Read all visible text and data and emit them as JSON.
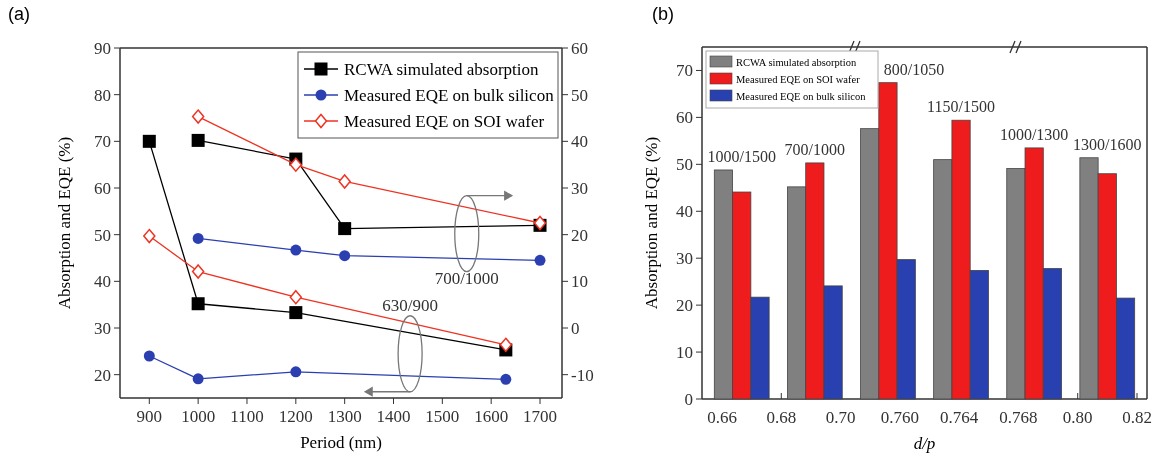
{
  "chart_data": [
    {
      "type": "line",
      "title": "(a)",
      "xlabel": "Period (nm)",
      "ylabel": "Absorption and EQE (%)",
      "xlim": [
        840,
        1745
      ],
      "xticks": [
        900,
        1000,
        1100,
        1200,
        1300,
        1400,
        1500,
        1600,
        1700
      ],
      "ylim": [
        15,
        90
      ],
      "yticks": [
        20,
        30,
        40,
        50,
        60,
        70,
        80,
        90
      ],
      "y2lim": [
        -15,
        60
      ],
      "y2ticks": [
        -10,
        0,
        10,
        20,
        30,
        40,
        50,
        60
      ],
      "legend": "top right",
      "annotations": [
        "630/900",
        "700/1000"
      ],
      "series": [
        {
          "name": "RCWA simulated absorption",
          "color": "#000000",
          "marker": "square",
          "x": [
            900,
            1000,
            1200,
            1630
          ],
          "values": [
            70,
            35.2,
            33.3,
            25.3
          ]
        },
        {
          "name": "Measured EQE on bulk silicon",
          "color": "#2b3fb0",
          "marker": "circle",
          "x": [
            900,
            1000,
            1200,
            1630
          ],
          "values": [
            24,
            19.1,
            20.6,
            19
          ]
        },
        {
          "name": "Measured EQE on SOI wafer",
          "color": "#ee3322",
          "marker": "diamond",
          "x": [
            900,
            1000,
            1200,
            1630
          ],
          "values": [
            49.7,
            42.1,
            36.6,
            26.4
          ]
        },
        {
          "color": "#000000",
          "marker": "square",
          "axis": "y2",
          "x": [
            1000,
            1200,
            1300,
            1700
          ],
          "values": [
            40.2,
            36.2,
            21.3,
            22
          ]
        },
        {
          "color": "#2b3fb0",
          "marker": "circle",
          "axis": "y2",
          "x": [
            1000,
            1200,
            1300,
            1700
          ],
          "values": [
            19.2,
            16.7,
            15.5,
            14.5
          ]
        },
        {
          "color": "#ee3322",
          "marker": "diamond",
          "axis": "y2",
          "x": [
            1000,
            1200,
            1300,
            1700
          ],
          "values": [
            45.3,
            35,
            31.4,
            22.5
          ]
        }
      ]
    },
    {
      "type": "bar",
      "title": "(b)",
      "xlabel": "d/p",
      "ylabel": "Absorption and EQE (%)",
      "ylim": [
        0,
        75
      ],
      "yticks": [
        0,
        10,
        20,
        30,
        40,
        50,
        60,
        70
      ],
      "legend": "top left",
      "categories": [
        "1000/1500",
        "700/1000",
        "800/1050",
        "1150/1500",
        "1000/1300",
        "1300/1600"
      ],
      "annotations": [
        "0.66",
        "0.68",
        "0.70",
        "0.760",
        "0.764",
        "0.768",
        "0.80",
        "0.82"
      ],
      "series": [
        {
          "name": "RCWA simulated absorption",
          "color": "#808080",
          "values": [
            48.8,
            45.2,
            57.6,
            51,
            49.1,
            51.4
          ]
        },
        {
          "name": "Measured EQE on SOI wafer",
          "color": "#ee1c1c",
          "values": [
            44.1,
            50.3,
            67.4,
            59.4,
            53.5,
            48
          ]
        },
        {
          "name": "Measured EQE on bulk silicon",
          "color": "#2840b0",
          "values": [
            21.7,
            24.1,
            29.7,
            27.4,
            27.8,
            21.5
          ]
        }
      ]
    }
  ]
}
